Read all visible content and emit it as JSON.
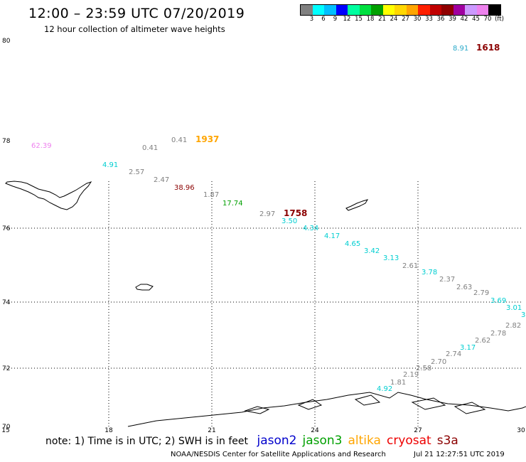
{
  "header": {
    "title": "12:00 – 23:59 UTC 07/20/2019",
    "subtitle": "12 hour collection of altimeter wave heights"
  },
  "color_scale": {
    "colors": [
      "#808080",
      "#00ffff",
      "#00bfff",
      "#0000ff",
      "#00ffa0",
      "#00e040",
      "#00a000",
      "#ffff00",
      "#ffd700",
      "#ffa500",
      "#ff2000",
      "#c00000",
      "#900000",
      "#a000a0",
      "#cc99ff",
      "#ee82ee",
      "#000000"
    ],
    "labels": [
      "3",
      "6",
      "9",
      "12",
      "15",
      "18",
      "21",
      "24",
      "27",
      "30",
      "33",
      "36",
      "39",
      "42",
      "45",
      "70",
      "(ft)"
    ]
  },
  "map": {
    "lat_labels": [
      "80",
      "78",
      "76",
      "74",
      "72",
      "70"
    ],
    "lon_labels": [
      "15",
      "18",
      "21",
      "24",
      "27",
      "30"
    ],
    "observations": [
      {
        "text": "8.91",
        "color": "#29a9c9"
      },
      {
        "text": "1618",
        "color": "#8b0000",
        "bold": true
      },
      {
        "text": "62.39",
        "color": "#ee82ee"
      },
      {
        "text": "0.41",
        "color": "#808080"
      },
      {
        "text": "1937",
        "color": "#ffa500",
        "bold": true
      },
      {
        "text": "0.41",
        "color": "#808080"
      },
      {
        "text": "4.91",
        "color": "#00ced1"
      },
      {
        "text": "2.57",
        "color": "#808080"
      },
      {
        "text": "2.47",
        "color": "#808080"
      },
      {
        "text": "38.96",
        "color": "#8b0000"
      },
      {
        "text": "1.87",
        "color": "#808080"
      },
      {
        "text": "17.74",
        "color": "#00a000"
      },
      {
        "text": "2.97",
        "color": "#808080"
      },
      {
        "text": "1758",
        "color": "#8b0000",
        "bold": true
      },
      {
        "text": "3.50",
        "color": "#00ced1"
      },
      {
        "text": "4.34",
        "color": "#00ced1"
      },
      {
        "text": "4.17",
        "color": "#00ced1"
      },
      {
        "text": "4.65",
        "color": "#00ced1"
      },
      {
        "text": "3.42",
        "color": "#00ced1"
      },
      {
        "text": "3.13",
        "color": "#00ced1"
      },
      {
        "text": "2.61",
        "color": "#808080"
      },
      {
        "text": "3.78",
        "color": "#00ced1"
      },
      {
        "text": "2.37",
        "color": "#808080"
      },
      {
        "text": "2.63",
        "color": "#808080"
      },
      {
        "text": "2.79",
        "color": "#808080"
      },
      {
        "text": "3.69",
        "color": "#00ced1"
      },
      {
        "text": "3.01",
        "color": "#00ced1"
      },
      {
        "text": "3",
        "color": "#00ced1"
      },
      {
        "text": "2.82",
        "color": "#808080"
      },
      {
        "text": "2.78",
        "color": "#808080"
      },
      {
        "text": "2.62",
        "color": "#808080"
      },
      {
        "text": "3.17",
        "color": "#00ced1"
      },
      {
        "text": "2.74",
        "color": "#808080"
      },
      {
        "text": "2.70",
        "color": "#808080"
      },
      {
        "text": "2.58",
        "color": "#808080"
      },
      {
        "text": "2.19",
        "color": "#808080"
      },
      {
        "text": "1.81",
        "color": "#808080"
      },
      {
        "text": "4.92",
        "color": "#00ced1"
      }
    ]
  },
  "footer": {
    "note": "note: 1) Time is in UTC; 2) SWH is in feet",
    "satellites": [
      {
        "name": "jason2",
        "color": "#0000cc"
      },
      {
        "name": "jason3",
        "color": "#00a000"
      },
      {
        "name": "altika",
        "color": "#ffa500"
      },
      {
        "name": "cryosat",
        "color": "#ee0000"
      },
      {
        "name": "s3a",
        "color": "#8b0000"
      }
    ],
    "agency": "NOAA/NESDIS Center for Satellite Applications and Research",
    "timestamp": "Jul 21 12:27:51 UTC 2019"
  }
}
